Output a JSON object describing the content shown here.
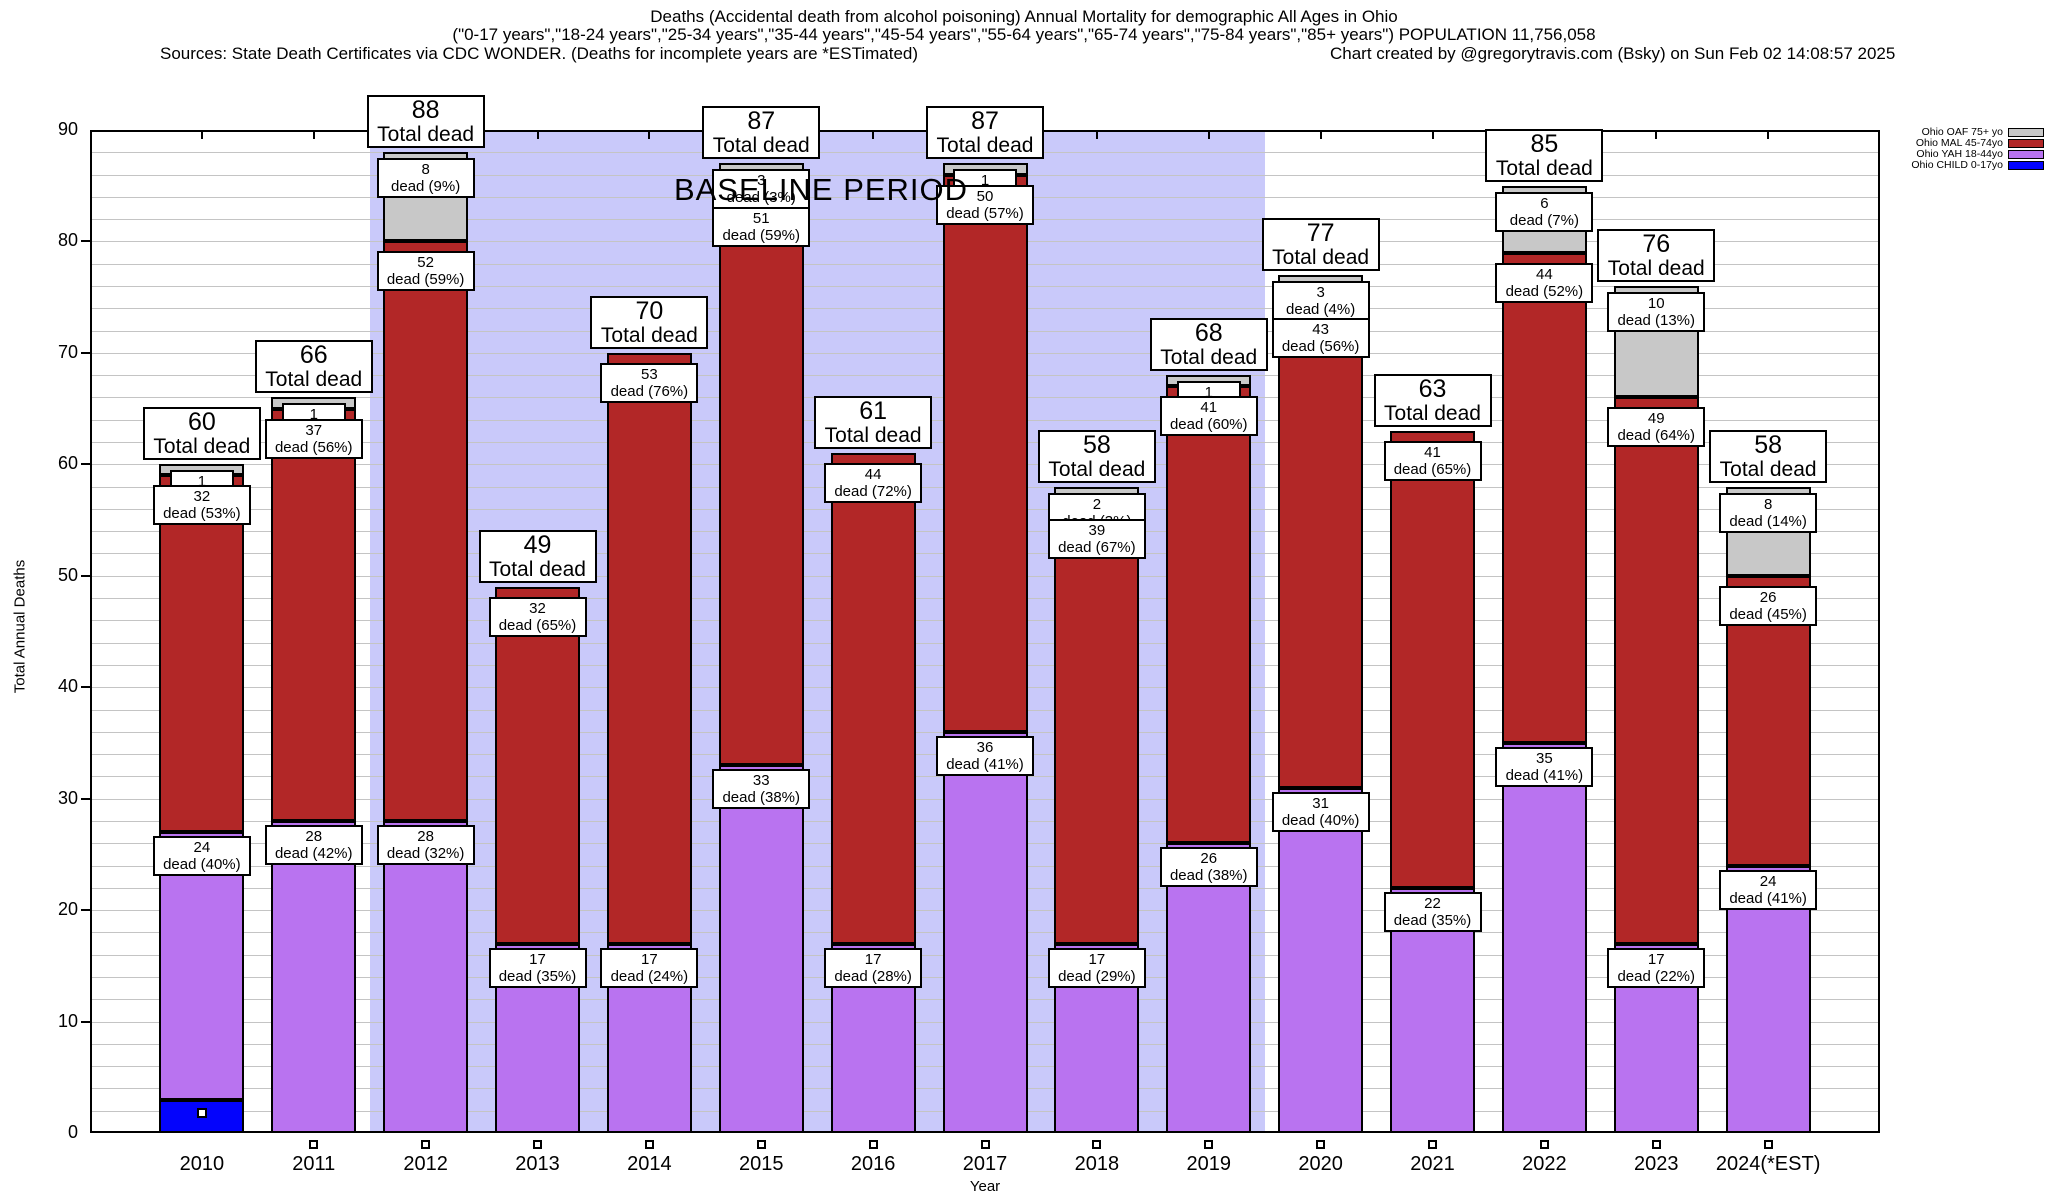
{
  "chart_data": {
    "type": "bar",
    "stacked": true,
    "title": "Deaths (Accidental death from alcohol poisoning) Annual Mortality for demographic All Ages in Ohio",
    "subtitle": "(\"0-17 years\",\"18-24 years\",\"25-34 years\",\"35-44 years\",\"45-54 years\",\"55-64 years\",\"65-74 years\",\"75-84 years\",\"85+ years\") POPULATION 11,756,058",
    "source_note": "Sources: State Death Certificates via CDC WONDER. (Deaths for incomplete years are *ESTimated)",
    "credit_note": "Chart created by @gregorytravis.com (Bsky) on Sun Feb 02 14:08:57 2025",
    "xlabel": "Year",
    "ylabel": "Total Annual Deaths",
    "ylim": [
      0,
      90
    ],
    "yticks": [
      0,
      10,
      20,
      30,
      40,
      50,
      60,
      70,
      80,
      90
    ],
    "minor_grid_step": 2,
    "grid": true,
    "total_label_text": "Total dead",
    "baseline": {
      "label": "BASELINE PERIOD",
      "x_start_year": 2011.5,
      "x_end_year": 2019.5,
      "bg_color": "#c9c9fa"
    },
    "colors": {
      "oaf": "#c8c8c8",
      "mal": "#b22727",
      "yah": "#b973f0",
      "child": "#0404fc",
      "marker_fill": "#ffffff"
    },
    "series_order": [
      "child",
      "yah",
      "mal",
      "oaf"
    ],
    "legend": {
      "position": "top-right",
      "entries": [
        {
          "key": "oaf",
          "label": "Ohio OAF 75+ yo",
          "color": "#c8c8c8"
        },
        {
          "key": "mal",
          "label": "Ohio MAL 45-74yo",
          "color": "#b22727"
        },
        {
          "key": "yah",
          "label": "Ohio YAH 18-44yo",
          "color": "#b973f0"
        },
        {
          "key": "child",
          "label": "Ohio CHILD 0-17yo",
          "color": "#0404fc"
        }
      ]
    },
    "years": [
      {
        "label": "2010",
        "total": 60,
        "child": 3,
        "yah": 24,
        "mal": 32,
        "oaf": 1,
        "yah_label": [
          "24",
          "dead (40%)"
        ],
        "mal_label": [
          "32",
          "dead (53%)"
        ],
        "oaf_label": [
          "1"
        ]
      },
      {
        "label": "2011",
        "total": 66,
        "child": 0,
        "yah": 28,
        "mal": 37,
        "oaf": 1,
        "yah_label": [
          "28",
          "dead (42%)"
        ],
        "mal_label": [
          "37",
          "dead (56%)"
        ],
        "oaf_label": [
          "1"
        ]
      },
      {
        "label": "2012",
        "total": 88,
        "child": 0,
        "yah": 28,
        "mal": 52,
        "oaf": 8,
        "yah_label": [
          "28",
          "dead (32%)"
        ],
        "mal_label": [
          "52",
          "dead (59%)"
        ],
        "oaf_label": [
          "8",
          "dead (9%)"
        ]
      },
      {
        "label": "2013",
        "total": 49,
        "child": 0,
        "yah": 17,
        "mal": 32,
        "oaf": 0,
        "yah_label": [
          "17",
          "dead (35%)"
        ],
        "mal_label": [
          "32",
          "dead (65%)"
        ]
      },
      {
        "label": "2014",
        "total": 70,
        "child": 0,
        "yah": 17,
        "mal": 53,
        "oaf": 0,
        "yah_label": [
          "17",
          "dead (24%)"
        ],
        "mal_label": [
          "53",
          "dead (76%)"
        ]
      },
      {
        "label": "2015",
        "total": 87,
        "child": 0,
        "yah": 33,
        "mal": 51,
        "oaf": 3,
        "yah_label": [
          "33",
          "dead (38%)"
        ],
        "mal_label": [
          "51",
          "dead (59%)"
        ],
        "oaf_label": [
          "3",
          "dead (3%)"
        ]
      },
      {
        "label": "2016",
        "total": 61,
        "child": 0,
        "yah": 17,
        "mal": 44,
        "oaf": 0,
        "yah_label": [
          "17",
          "dead (28%)"
        ],
        "mal_label": [
          "44",
          "dead (72%)"
        ]
      },
      {
        "label": "2017",
        "total": 87,
        "child": 0,
        "yah": 36,
        "mal": 50,
        "oaf": 1,
        "yah_label": [
          "36",
          "dead (41%)"
        ],
        "mal_label": [
          "50",
          "dead (57%)"
        ],
        "oaf_label": [
          "1"
        ]
      },
      {
        "label": "2018",
        "total": 58,
        "child": 0,
        "yah": 17,
        "mal": 39,
        "oaf": 2,
        "yah_label": [
          "17",
          "dead (29%)"
        ],
        "mal_label": [
          "39",
          "dead (67%)"
        ],
        "oaf_label": [
          "2",
          "dead (3%)"
        ]
      },
      {
        "label": "2019",
        "total": 68,
        "child": 0,
        "yah": 26,
        "mal": 41,
        "oaf": 1,
        "yah_label": [
          "26",
          "dead (38%)"
        ],
        "mal_label": [
          "41",
          "dead (60%)"
        ],
        "oaf_label": [
          "1"
        ]
      },
      {
        "label": "2020",
        "total": 77,
        "child": 0,
        "yah": 31,
        "mal": 43,
        "oaf": 3,
        "yah_label": [
          "31",
          "dead (40%)"
        ],
        "mal_label": [
          "43",
          "dead (56%)"
        ],
        "oaf_label": [
          "3",
          "dead (4%)"
        ]
      },
      {
        "label": "2021",
        "total": 63,
        "child": 0,
        "yah": 22,
        "mal": 41,
        "oaf": 0,
        "yah_label": [
          "22",
          "dead (35%)"
        ],
        "mal_label": [
          "41",
          "dead (65%)"
        ]
      },
      {
        "label": "2022",
        "total": 85,
        "child": 0,
        "yah": 35,
        "mal": 44,
        "oaf": 6,
        "yah_label": [
          "35",
          "dead (41%)"
        ],
        "mal_label": [
          "44",
          "dead (52%)"
        ],
        "oaf_label": [
          "6",
          "dead (7%)"
        ]
      },
      {
        "label": "2023",
        "total": 76,
        "child": 0,
        "yah": 17,
        "mal": 49,
        "oaf": 10,
        "yah_label": [
          "17",
          "dead (22%)"
        ],
        "mal_label": [
          "49",
          "dead (64%)"
        ],
        "oaf_label": [
          "10",
          "dead (13%)"
        ]
      },
      {
        "label": "2024(*EST)",
        "total": 58,
        "child": 0,
        "yah": 24,
        "mal": 26,
        "oaf": 8,
        "yah_label": [
          "24",
          "dead (41%)"
        ],
        "mal_label": [
          "26",
          "dead (45%)"
        ],
        "oaf_label": [
          "8",
          "dead (14%)"
        ]
      }
    ]
  }
}
